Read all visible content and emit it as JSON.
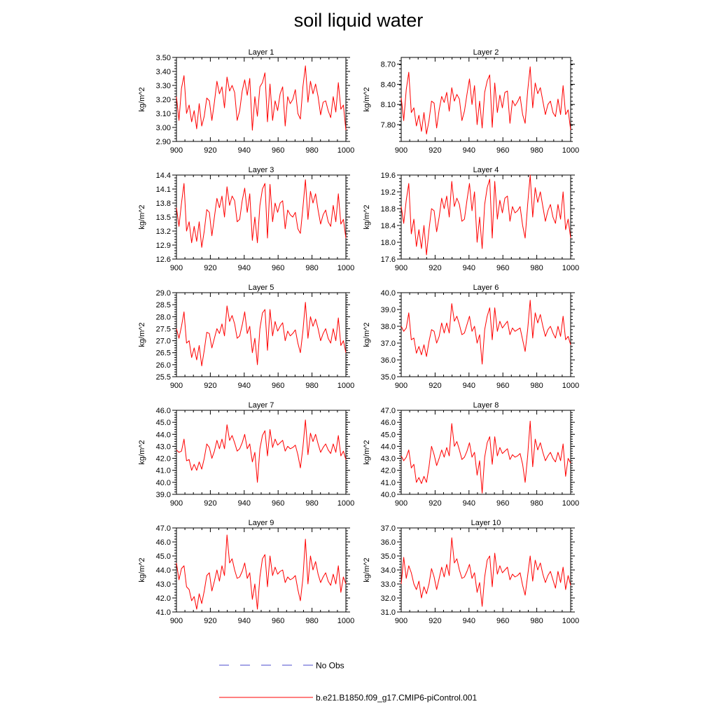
{
  "title": "soil liquid water",
  "legend": {
    "entries": [
      {
        "label": "No Obs",
        "color": "#4b4bcc",
        "style": "dashed"
      },
      {
        "label": "b.e21.B1850.f09_g17.CMIP6-piControl.001",
        "color": "#ff0000",
        "style": "solid"
      }
    ]
  },
  "chart_data": [
    {
      "type": "line",
      "title": "Layer 1",
      "ylabel": "kg/m^2",
      "xlim": [
        900,
        1000
      ],
      "ylim": [
        2.9,
        3.5
      ],
      "xticks": [
        900,
        920,
        940,
        960,
        980,
        1000
      ],
      "yticks": [
        "2.90",
        "3.00",
        "3.10",
        "3.20",
        "3.30",
        "3.40",
        "3.50"
      ],
      "series": [
        {
          "name": "b.e21.B1850.f09_g17.CMIP6-piControl.001",
          "color": "#ff0000",
          "x_start": 900,
          "values": [
            3.22,
            3.05,
            3.28,
            3.37,
            3.1,
            3.16,
            3.04,
            3.12,
            2.99,
            3.17,
            3.01,
            3.08,
            3.21,
            3.19,
            3.05,
            3.18,
            3.33,
            3.24,
            3.29,
            3.14,
            3.36,
            3.26,
            3.3,
            3.25,
            3.05,
            3.12,
            3.26,
            3.34,
            3.23,
            3.35,
            2.98,
            3.22,
            3.08,
            3.29,
            3.32,
            3.39,
            3.04,
            3.31,
            3.05,
            3.19,
            3.12,
            3.24,
            3.29,
            3.01,
            3.22,
            3.17,
            3.2,
            3.27,
            3.1,
            3.06,
            3.29,
            3.44,
            3.18,
            3.33,
            3.24,
            3.31,
            3.22,
            3.09,
            3.18,
            3.19,
            3.12,
            3.07,
            3.22,
            3.11,
            3.32,
            3.13,
            3.16,
            2.98
          ]
        }
      ]
    },
    {
      "type": "line",
      "title": "Layer 2",
      "ylabel": "kg/m^2",
      "xlim": [
        900,
        1000
      ],
      "ylim": [
        7.55,
        8.8
      ],
      "xticks": [
        900,
        920,
        940,
        960,
        980,
        1000
      ],
      "yticks": [
        "7.80",
        "8.10",
        "8.40",
        "8.70"
      ],
      "series": [
        {
          "name": "b.e21.B1850.f09_g17.CMIP6-piControl.001",
          "color": "#ff0000",
          "x_start": 900,
          "values": [
            8.2,
            7.86,
            8.32,
            8.58,
            7.98,
            8.05,
            7.78,
            7.94,
            7.7,
            7.98,
            7.66,
            7.86,
            8.15,
            8.12,
            7.75,
            8.02,
            8.22,
            8.13,
            8.28,
            8.0,
            8.35,
            8.15,
            8.25,
            8.18,
            7.86,
            8.0,
            8.25,
            8.48,
            8.1,
            8.38,
            7.8,
            8.15,
            7.75,
            8.28,
            8.45,
            8.54,
            7.76,
            8.42,
            7.98,
            8.24,
            8.05,
            8.28,
            8.3,
            7.82,
            8.16,
            8.08,
            8.14,
            8.22,
            7.95,
            7.82,
            8.3,
            8.66,
            8.05,
            8.42,
            8.26,
            8.35,
            8.15,
            7.95,
            8.1,
            8.15,
            7.98,
            7.92,
            8.18,
            7.95,
            8.38,
            7.95,
            8.02,
            7.72
          ]
        }
      ]
    },
    {
      "type": "line",
      "title": "Layer 3",
      "ylabel": "kg/m^2",
      "xlim": [
        900,
        1000
      ],
      "ylim": [
        12.6,
        14.4
      ],
      "xticks": [
        900,
        920,
        940,
        960,
        980,
        1000
      ],
      "yticks": [
        "12.6",
        "12.9",
        "13.2",
        "13.5",
        "13.8",
        "14.1",
        "14.4"
      ],
      "series": [
        {
          "name": "b.e21.B1850.f09_g17.CMIP6-piControl.001",
          "color": "#ff0000",
          "x_start": 900,
          "values": [
            13.7,
            13.3,
            13.8,
            14.22,
            13.2,
            13.4,
            12.95,
            13.3,
            12.98,
            13.4,
            12.85,
            13.2,
            13.66,
            13.6,
            13.1,
            13.5,
            13.9,
            13.7,
            13.95,
            13.5,
            14.15,
            13.75,
            13.95,
            13.85,
            13.4,
            13.45,
            13.85,
            14.12,
            13.6,
            14.0,
            13.0,
            13.5,
            12.95,
            13.75,
            14.1,
            14.22,
            13.05,
            14.2,
            13.4,
            13.8,
            13.6,
            13.8,
            13.85,
            13.25,
            13.65,
            13.55,
            13.5,
            13.6,
            13.25,
            13.15,
            13.7,
            14.3,
            13.45,
            14.05,
            13.8,
            14.0,
            13.65,
            13.35,
            13.55,
            13.65,
            13.4,
            13.3,
            13.75,
            13.4,
            14.0,
            13.35,
            13.45,
            13.05
          ]
        }
      ]
    },
    {
      "type": "line",
      "title": "Layer 4",
      "ylabel": "kg/m^2",
      "xlim": [
        900,
        1000
      ],
      "ylim": [
        17.6,
        19.6
      ],
      "xticks": [
        900,
        920,
        940,
        960,
        980,
        1000
      ],
      "yticks": [
        "17.6",
        "18.0",
        "18.4",
        "18.8",
        "19.2",
        "19.6"
      ],
      "series": [
        {
          "name": "b.e21.B1850.f09_g17.CMIP6-piControl.001",
          "color": "#ff0000",
          "x_start": 900,
          "values": [
            18.85,
            18.45,
            19.0,
            19.4,
            18.2,
            18.55,
            17.9,
            18.3,
            17.85,
            18.4,
            17.7,
            18.3,
            18.8,
            18.75,
            18.25,
            18.6,
            19.05,
            18.8,
            19.1,
            18.6,
            19.45,
            18.85,
            19.05,
            18.9,
            18.5,
            18.55,
            19.0,
            19.4,
            18.75,
            19.2,
            18.0,
            18.6,
            17.85,
            18.9,
            19.3,
            19.5,
            18.1,
            19.45,
            18.55,
            19.0,
            18.7,
            19.05,
            19.1,
            18.5,
            18.85,
            18.7,
            18.75,
            18.85,
            18.4,
            18.1,
            18.9,
            19.6,
            18.6,
            19.3,
            18.95,
            19.2,
            18.85,
            18.5,
            18.75,
            18.9,
            18.6,
            18.45,
            18.9,
            18.55,
            19.2,
            18.3,
            18.55,
            18.1
          ]
        }
      ]
    },
    {
      "type": "line",
      "title": "Layer 5",
      "ylabel": "kg/m^2",
      "xlim": [
        900,
        1000
      ],
      "ylim": [
        25.5,
        29.0
      ],
      "xticks": [
        900,
        920,
        940,
        960,
        980,
        1000
      ],
      "yticks": [
        "25.5",
        "26.0",
        "26.5",
        "27.0",
        "27.5",
        "28.0",
        "28.5",
        "29.0"
      ],
      "series": [
        {
          "name": "b.e21.B1850.f09_g17.CMIP6-piControl.001",
          "color": "#ff0000",
          "x_start": 900,
          "values": [
            27.5,
            27.1,
            27.6,
            28.2,
            26.9,
            27.0,
            26.3,
            26.7,
            26.2,
            26.8,
            25.95,
            26.6,
            27.35,
            27.3,
            26.7,
            27.1,
            27.5,
            27.3,
            27.7,
            27.2,
            28.45,
            27.8,
            28.05,
            27.7,
            27.1,
            27.2,
            27.65,
            28.2,
            27.3,
            27.6,
            26.5,
            27.1,
            26.0,
            27.5,
            28.15,
            28.3,
            26.6,
            28.3,
            27.2,
            27.8,
            27.4,
            27.6,
            27.75,
            27.0,
            27.4,
            27.2,
            27.3,
            27.45,
            26.9,
            26.5,
            27.4,
            28.6,
            27.1,
            28.0,
            27.6,
            27.9,
            27.5,
            27.0,
            27.3,
            27.5,
            27.1,
            26.9,
            27.5,
            27.0,
            27.95,
            26.8,
            27.0,
            26.5
          ]
        }
      ]
    },
    {
      "type": "line",
      "title": "Layer 6",
      "ylabel": "kg/m^2",
      "xlim": [
        900,
        1000
      ],
      "ylim": [
        35.0,
        40.0
      ],
      "xticks": [
        900,
        920,
        940,
        960,
        980,
        1000
      ],
      "yticks": [
        "35.0",
        "36.0",
        "37.0",
        "38.0",
        "39.0",
        "40.0"
      ],
      "series": [
        {
          "name": "b.e21.B1850.f09_g17.CMIP6-piControl.001",
          "color": "#ff0000",
          "x_start": 900,
          "values": [
            38.0,
            37.7,
            37.9,
            38.8,
            37.2,
            37.3,
            36.4,
            36.8,
            36.3,
            36.9,
            36.2,
            37.1,
            37.8,
            37.7,
            37.0,
            37.4,
            38.2,
            37.6,
            38.2,
            37.6,
            39.35,
            38.3,
            38.6,
            38.1,
            37.5,
            37.6,
            38.1,
            38.6,
            37.7,
            38.0,
            37.0,
            37.5,
            35.75,
            37.8,
            38.6,
            39.1,
            37.2,
            39.1,
            37.7,
            38.3,
            37.9,
            38.1,
            38.3,
            37.5,
            37.9,
            37.7,
            37.8,
            37.9,
            37.2,
            36.5,
            37.8,
            39.55,
            37.3,
            38.8,
            38.2,
            38.7,
            38.0,
            37.4,
            37.8,
            38.0,
            37.6,
            37.3,
            38.0,
            37.4,
            38.6,
            37.2,
            37.4,
            36.9
          ]
        }
      ]
    },
    {
      "type": "line",
      "title": "Layer 7",
      "ylabel": "kg/m^2",
      "xlim": [
        900,
        1000
      ],
      "ylim": [
        39.0,
        46.0
      ],
      "xticks": [
        900,
        920,
        940,
        960,
        980,
        1000
      ],
      "yticks": [
        "39.0",
        "40.0",
        "41.0",
        "42.0",
        "43.0",
        "44.0",
        "45.0",
        "46.0"
      ],
      "series": [
        {
          "name": "b.e21.B1850.f09_g17.CMIP6-piControl.001",
          "color": "#ff0000",
          "x_start": 900,
          "values": [
            42.7,
            42.5,
            42.6,
            43.6,
            41.8,
            41.9,
            41.0,
            41.5,
            41.0,
            41.7,
            41.1,
            42.0,
            43.2,
            42.9,
            42.0,
            42.6,
            43.5,
            42.8,
            43.6,
            42.8,
            44.8,
            43.5,
            43.9,
            43.3,
            42.6,
            42.8,
            43.3,
            44.0,
            42.8,
            43.2,
            41.7,
            42.5,
            40.0,
            42.8,
            43.9,
            44.3,
            42.2,
            44.4,
            42.9,
            43.6,
            43.1,
            43.3,
            43.5,
            42.6,
            43.0,
            42.8,
            42.9,
            43.1,
            42.3,
            41.2,
            42.9,
            45.2,
            42.3,
            44.1,
            43.4,
            44.0,
            43.2,
            42.5,
            42.9,
            43.2,
            42.7,
            42.4,
            43.2,
            42.5,
            43.9,
            42.2,
            42.6,
            41.9
          ]
        }
      ]
    },
    {
      "type": "line",
      "title": "Layer 8",
      "ylabel": "kg/m^2",
      "xlim": [
        900,
        1000
      ],
      "ylim": [
        40.0,
        47.0
      ],
      "xticks": [
        900,
        920,
        940,
        960,
        980,
        1000
      ],
      "yticks": [
        "40.0",
        "41.0",
        "42.0",
        "43.0",
        "44.0",
        "45.0",
        "46.0",
        "47.0"
      ],
      "series": [
        {
          "name": "b.e21.B1850.f09_g17.CMIP6-piControl.001",
          "color": "#ff0000",
          "x_start": 900,
          "values": [
            43.2,
            42.8,
            43.1,
            43.7,
            42.2,
            42.5,
            41.0,
            41.4,
            40.9,
            41.5,
            41.0,
            42.3,
            44.0,
            43.3,
            42.4,
            43.0,
            43.7,
            43.1,
            43.9,
            43.2,
            45.9,
            44.0,
            44.4,
            43.7,
            42.9,
            43.1,
            43.6,
            44.3,
            43.1,
            43.5,
            41.6,
            42.8,
            40.1,
            43.1,
            44.3,
            44.8,
            42.5,
            44.8,
            43.2,
            43.9,
            43.4,
            43.6,
            43.8,
            42.9,
            43.3,
            43.1,
            43.2,
            43.4,
            42.5,
            41.0,
            43.2,
            46.1,
            42.3,
            44.6,
            43.7,
            44.3,
            43.5,
            42.8,
            43.2,
            43.5,
            43.0,
            42.7,
            43.5,
            42.8,
            44.2,
            41.5,
            43.0,
            42.6
          ]
        }
      ]
    },
    {
      "type": "line",
      "title": "Layer 9",
      "ylabel": "kg/m^2",
      "xlim": [
        900,
        1000
      ],
      "ylim": [
        41.0,
        47.0
      ],
      "xticks": [
        900,
        920,
        940,
        960,
        980,
        1000
      ],
      "yticks": [
        "41.0",
        "42.0",
        "43.0",
        "44.0",
        "45.0",
        "46.0",
        "47.0"
      ],
      "series": [
        {
          "name": "b.e21.B1850.f09_g17.CMIP6-piControl.001",
          "color": "#ff0000",
          "x_start": 900,
          "values": [
            44.5,
            43.3,
            44.1,
            44.3,
            42.8,
            42.6,
            41.8,
            42.1,
            41.2,
            42.3,
            41.6,
            42.5,
            43.6,
            43.8,
            42.5,
            43.2,
            44.0,
            43.2,
            44.3,
            43.6,
            46.5,
            44.5,
            44.8,
            44.0,
            43.4,
            43.5,
            43.9,
            44.5,
            43.4,
            43.8,
            41.9,
            43.0,
            41.2,
            43.5,
            44.8,
            45.1,
            42.8,
            45.0,
            43.6,
            44.2,
            43.7,
            43.9,
            44.0,
            43.1,
            43.5,
            43.3,
            43.4,
            43.6,
            42.6,
            41.8,
            43.4,
            46.2,
            43.0,
            45.0,
            44.0,
            44.6,
            43.7,
            43.1,
            43.5,
            43.8,
            43.2,
            42.9,
            43.7,
            43.0,
            44.3,
            42.4,
            43.5,
            43.0
          ]
        }
      ]
    },
    {
      "type": "line",
      "title": "Layer 10",
      "ylabel": "kg/m^2",
      "xlim": [
        900,
        1000
      ],
      "ylim": [
        31.0,
        37.0
      ],
      "xticks": [
        900,
        920,
        940,
        960,
        980,
        1000
      ],
      "yticks": [
        "31.0",
        "32.0",
        "33.0",
        "34.0",
        "35.0",
        "36.0",
        "37.0"
      ],
      "series": [
        {
          "name": "b.e21.B1850.f09_g17.CMIP6-piControl.001",
          "color": "#ff0000",
          "x_start": 900,
          "values": [
            33.0,
            34.9,
            33.4,
            34.3,
            33.8,
            33.0,
            32.6,
            33.2,
            32.0,
            32.8,
            32.3,
            33.0,
            34.1,
            33.5,
            32.6,
            33.4,
            34.2,
            33.5,
            34.4,
            33.6,
            36.3,
            34.5,
            34.8,
            34.0,
            33.4,
            33.5,
            33.9,
            34.4,
            33.4,
            33.8,
            32.4,
            33.1,
            31.4,
            33.5,
            34.7,
            35.0,
            32.8,
            35.2,
            33.7,
            34.3,
            33.8,
            34.0,
            34.2,
            33.3,
            33.7,
            33.5,
            33.6,
            33.8,
            32.9,
            32.2,
            33.6,
            35.0,
            33.2,
            34.7,
            34.0,
            34.5,
            33.7,
            33.1,
            33.6,
            33.9,
            33.3,
            32.7,
            33.9,
            33.1,
            34.2,
            32.6,
            33.6,
            32.9
          ]
        }
      ]
    }
  ]
}
